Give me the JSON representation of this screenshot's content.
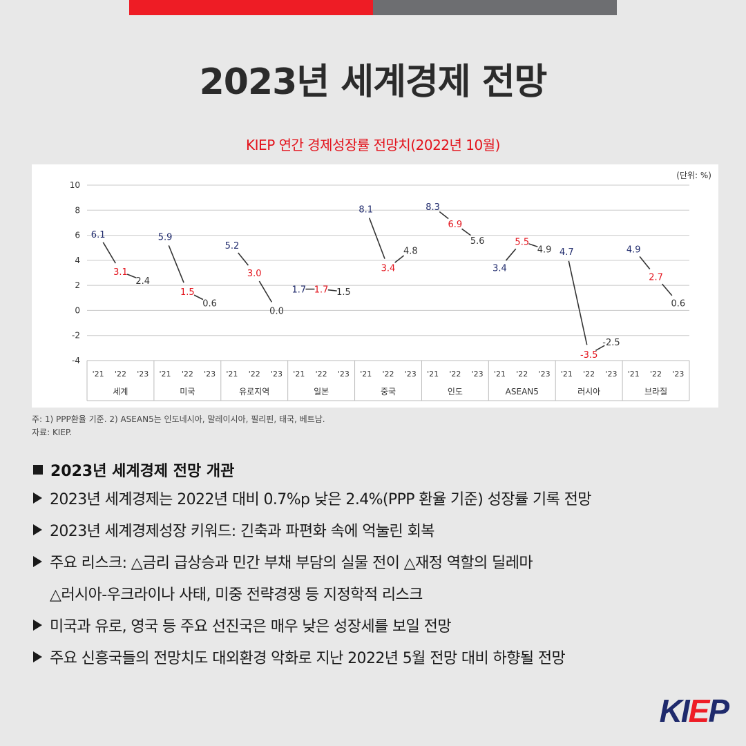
{
  "header": {
    "title": "2023년 세계경제 전망",
    "subtitle": "KIEP 연간 경제성장률 전망치(2022년 10월)"
  },
  "colors": {
    "accent_red": "#ee1c25",
    "accent_gray": "#6d6e71",
    "navy": "#1f2a6c"
  },
  "chart_data": {
    "type": "line",
    "unit_label": "(단위: %)",
    "ylim": [
      -4,
      10
    ],
    "yticks": [
      "10",
      "8",
      "6",
      "4",
      "2",
      "0",
      "-2",
      "-4"
    ],
    "grid": true,
    "year_labels": [
      "'21",
      "'22",
      "'23"
    ],
    "groups": [
      {
        "name": "세계",
        "values": [
          6.1,
          3.1,
          2.4
        ],
        "labels": [
          "6.1",
          "3.1",
          "2.4"
        ]
      },
      {
        "name": "미국",
        "values": [
          5.9,
          1.5,
          0.6
        ],
        "labels": [
          "5.9",
          "1.5",
          "0.6"
        ]
      },
      {
        "name": "유로지역",
        "values": [
          5.2,
          3.0,
          0.0
        ],
        "labels": [
          "5.2",
          "3.0",
          "0.0"
        ]
      },
      {
        "name": "일본",
        "values": [
          1.7,
          1.7,
          1.5
        ],
        "labels": [
          "1.7",
          "1.7",
          "1.5"
        ]
      },
      {
        "name": "중국",
        "values": [
          8.1,
          3.4,
          4.8
        ],
        "labels": [
          "8.1",
          "3.4",
          "4.8"
        ]
      },
      {
        "name": "인도",
        "values": [
          8.3,
          6.9,
          5.6
        ],
        "labels": [
          "8.3",
          "6.9",
          "5.6"
        ]
      },
      {
        "name": "ASEAN5",
        "values": [
          3.4,
          5.5,
          4.9
        ],
        "labels": [
          "3.4",
          "5.5",
          "4.9"
        ]
      },
      {
        "name": "러시아",
        "values": [
          4.7,
          -3.5,
          -2.5
        ],
        "labels": [
          "4.7",
          "-3.5",
          "-2.5"
        ]
      },
      {
        "name": "브라질",
        "values": [
          4.9,
          2.7,
          0.6
        ],
        "labels": [
          "4.9",
          "2.7",
          "0.6"
        ]
      }
    ],
    "label_colors": [
      "#1f2a6c",
      "#e3121b",
      "#333333"
    ]
  },
  "notes": {
    "line1": "주: 1) PPP환율 기준. 2) ASEAN5는 인도네시아, 말레이시아, 필리핀, 태국, 베트남.",
    "line2": "자료: KIEP."
  },
  "summary": {
    "heading": "2023년 세계경제 전망 개관",
    "bullets": [
      "2023년 세계경제는 2022년 대비 0.7%p 낮은 2.4%(PPP 환율 기준) 성장률 기록 전망",
      "2023년 세계경제성장 키워드: 긴축과 파편화 속에 억눌린 회복",
      "주요 리스크: △금리 급상승과 민간 부채 부담의 실물 전이 △재정 역할의 딜레마",
      "미국과 유로, 영국 등 주요 선진국은 매우 낮은 성장세를 보일 전망",
      "주요 신흥국들의 전망치도 대외환경 악화로 지난 2022년 5월 전망 대비 하향될 전망"
    ],
    "bullet3_cont": "△러시아-우크라이나 사태, 미중 전략경쟁 등 지정학적 리스크"
  },
  "logo": {
    "part1": "KI",
    "part2": "E",
    "part3": "P"
  }
}
